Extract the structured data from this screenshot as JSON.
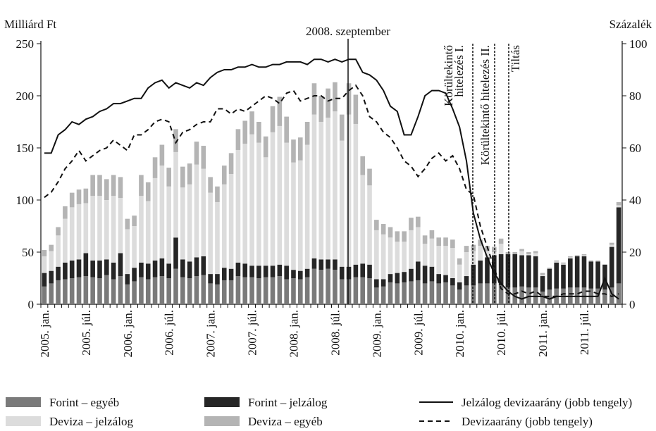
{
  "chart_data": {
    "type": "bar",
    "stacked": true,
    "y_axis_label": "Milliárd Ft",
    "y2_axis_label": "Százalék",
    "ylim": [
      0,
      250
    ],
    "yticks": [
      0,
      50,
      100,
      150,
      200,
      250
    ],
    "y2lim": [
      0,
      100
    ],
    "y2ticks": [
      0,
      20,
      40,
      60,
      80,
      100
    ],
    "categories": [
      "2005. jan.",
      null,
      null,
      null,
      null,
      null,
      "2005. júl.",
      null,
      null,
      null,
      null,
      null,
      "2006. jan.",
      null,
      null,
      null,
      null,
      null,
      "2006. júl.",
      null,
      null,
      null,
      null,
      null,
      "2007. jan.",
      null,
      null,
      null,
      null,
      null,
      "2007. júl.",
      null,
      null,
      null,
      null,
      null,
      "2008. jan.",
      null,
      null,
      null,
      null,
      null,
      "2008. júl.",
      null,
      null,
      null,
      null,
      null,
      "2009. jan.",
      null,
      null,
      null,
      null,
      null,
      "2009. júl.",
      null,
      null,
      null,
      null,
      null,
      "2010. jan.",
      null,
      null,
      null,
      null,
      null,
      "2010. júl.",
      null,
      null,
      null,
      null,
      null,
      "2011. jan.",
      null,
      null,
      null,
      null,
      null,
      "2011. júl.",
      null,
      null,
      null,
      null,
      null
    ],
    "series": [
      {
        "name": "Forint – egyéb",
        "color": "#7a7a7a",
        "values": [
          17,
          20,
          23,
          24,
          25,
          26,
          27,
          26,
          25,
          28,
          24,
          27,
          19,
          22,
          26,
          24,
          26,
          27,
          25,
          34,
          26,
          25,
          27,
          28,
          20,
          19,
          23,
          23,
          27,
          26,
          26,
          25,
          26,
          26,
          27,
          24,
          25,
          24,
          26,
          34,
          33,
          34,
          33,
          24,
          24,
          26,
          26,
          25,
          16,
          17,
          21,
          20,
          21,
          22,
          23,
          20,
          22,
          20,
          21,
          18,
          14,
          18,
          18,
          20,
          20,
          20,
          18,
          16,
          16,
          17,
          16,
          16,
          12,
          14,
          15,
          15,
          16,
          16,
          16,
          15,
          15,
          14,
          16,
          20
        ]
      },
      {
        "name": "Forint – jelzálog",
        "color": "#262626",
        "values": [
          13,
          12,
          13,
          16,
          17,
          17,
          22,
          16,
          17,
          15,
          16,
          22,
          10,
          13,
          14,
          15,
          16,
          17,
          14,
          30,
          17,
          16,
          18,
          18,
          9,
          10,
          12,
          11,
          13,
          13,
          11,
          12,
          11,
          11,
          11,
          13,
          8,
          8,
          8,
          10,
          10,
          9,
          10,
          12,
          12,
          12,
          13,
          13,
          8,
          7,
          8,
          10,
          10,
          12,
          18,
          17,
          14,
          9,
          7,
          7,
          7,
          9,
          20,
          22,
          25,
          27,
          30,
          32,
          32,
          30,
          31,
          30,
          15,
          20,
          25,
          23,
          28,
          30,
          30,
          26,
          26,
          24,
          39,
          73
        ]
      },
      {
        "name": "Deviza – jelzálog",
        "color": "#dcdcdc",
        "values": [
          16,
          19,
          30,
          42,
          51,
          53,
          48,
          62,
          62,
          57,
          64,
          53,
          43,
          40,
          64,
          60,
          79,
          89,
          74,
          82,
          69,
          74,
          89,
          84,
          78,
          69,
          80,
          91,
          108,
          115,
          126,
          118,
          104,
          128,
          133,
          118,
          103,
          106,
          119,
          138,
          132,
          136,
          142,
          121,
          146,
          135,
          85,
          76,
          47,
          43,
          35,
          30,
          29,
          37,
          33,
          21,
          27,
          27,
          28,
          29,
          17,
          23,
          13,
          14,
          6,
          3,
          10,
          0,
          0,
          4,
          1,
          3,
          1,
          0,
          1,
          1,
          1,
          0,
          1,
          0,
          0,
          0,
          2,
          2
        ]
      },
      {
        "name": "Deviza – egyéb",
        "color": "#b4b4b4",
        "values": [
          6,
          6,
          8,
          12,
          14,
          14,
          14,
          20,
          20,
          20,
          20,
          20,
          10,
          10,
          20,
          18,
          20,
          20,
          18,
          22,
          20,
          20,
          22,
          22,
          15,
          15,
          18,
          20,
          20,
          22,
          22,
          20,
          20,
          25,
          28,
          25,
          22,
          22,
          22,
          30,
          25,
          28,
          28,
          25,
          30,
          28,
          18,
          16,
          10,
          10,
          10,
          10,
          10,
          12,
          10,
          8,
          8,
          8,
          8,
          8,
          6,
          6,
          6,
          6,
          5,
          5,
          5,
          2,
          2,
          2,
          2,
          2,
          2,
          1,
          1,
          1,
          1,
          1,
          1,
          1,
          1,
          0,
          2,
          3
        ]
      },
      {
        "name": "Jelzálog devizaarány (jobb tengely)",
        "type": "line",
        "axis": "y2",
        "line_style": "solid",
        "color": "#111111",
        "values": [
          58,
          58,
          65,
          67,
          70,
          69,
          71,
          72,
          74,
          75,
          77,
          77,
          78,
          79,
          79,
          83,
          85,
          86,
          83,
          85,
          84,
          83,
          85,
          84,
          87,
          89,
          90,
          90,
          91,
          91,
          92,
          91,
          91,
          92,
          92,
          93,
          93,
          93,
          92,
          94,
          94,
          93,
          94,
          93,
          94,
          94,
          89,
          88,
          86,
          82,
          76,
          74,
          65,
          65,
          72,
          80,
          82,
          82,
          81,
          75,
          68,
          55,
          35,
          25,
          18,
          12,
          8,
          5,
          3,
          2,
          3,
          3,
          3,
          2,
          3,
          3,
          3,
          3,
          3,
          3,
          3,
          10,
          4,
          2
        ]
      },
      {
        "name": "Devizaarány (jobb tengely)",
        "type": "line",
        "axis": "y2",
        "line_style": "dashed",
        "color": "#111111",
        "values": [
          41,
          43,
          47,
          52,
          55,
          59,
          55,
          57,
          59,
          60,
          63,
          61,
          59,
          65,
          65,
          67,
          70,
          71,
          70,
          62,
          66,
          67,
          69,
          70,
          70,
          75,
          75,
          73,
          75,
          74,
          76,
          78,
          80,
          79,
          77,
          81,
          82,
          78,
          79,
          80,
          80,
          78,
          79,
          79,
          82,
          84,
          80,
          72,
          70,
          66,
          64,
          60,
          55,
          53,
          49,
          52,
          56,
          58,
          55,
          57,
          52,
          44,
          42,
          30,
          22,
          14,
          6,
          4,
          4,
          5,
          4,
          5,
          3,
          3,
          3,
          4,
          4,
          4,
          5,
          5,
          4,
          4,
          3,
          4
        ]
      }
    ],
    "annotations": [
      {
        "lines": [
          "2008. szeptember"
        ],
        "line_style": "solid"
      },
      {
        "lines": [
          "Körültekintő",
          "hitelezés I."
        ],
        "line_style": "dotted"
      },
      {
        "lines": [
          "Körültekintő hitelezés II."
        ],
        "line_style": "dotted"
      },
      {
        "lines": [
          "Tiltás"
        ],
        "line_style": "dotted"
      }
    ]
  }
}
